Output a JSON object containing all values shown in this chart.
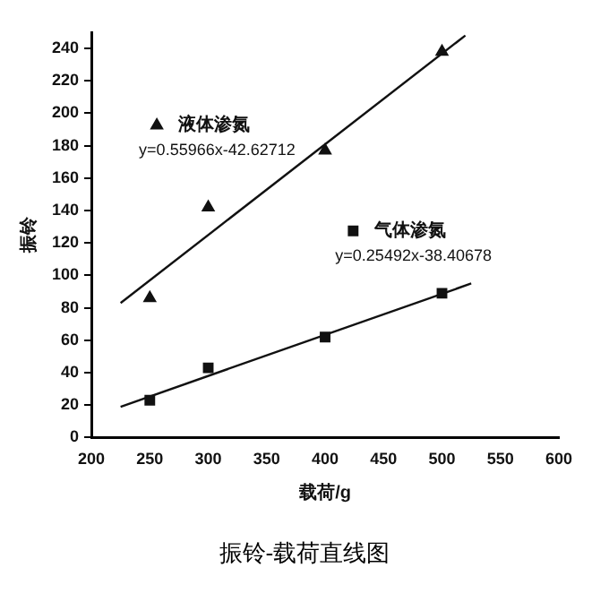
{
  "chart_data": {
    "type": "scatter",
    "title": "振铃-载荷直线图",
    "xlabel": "载荷/g",
    "ylabel": "振铃",
    "xlim": [
      200,
      600
    ],
    "xticks": [
      200,
      250,
      300,
      350,
      400,
      450,
      500,
      550,
      600
    ],
    "ylim": [
      0,
      250
    ],
    "yticks": [
      0,
      20,
      40,
      60,
      80,
      100,
      120,
      140,
      160,
      180,
      200,
      220,
      240
    ],
    "grid": false,
    "legend": "top left",
    "annotations": [
      "y=0.55966x-42.62712",
      "y=0.25492x-38.40678"
    ],
    "series": [
      {
        "name": "液体渗氮",
        "marker": "triangle",
        "color": "#111111",
        "x": [
          250,
          300,
          400,
          500
        ],
        "values": [
          86,
          142,
          177,
          238
        ]
      },
      {
        "name": "气体渗氮",
        "marker": "square",
        "color": "#111111",
        "x": [
          250,
          300,
          400,
          500
        ],
        "values": [
          23,
          43,
          62,
          89
        ]
      },
      {
        "type": "line",
        "color": "#111111",
        "marker": "none",
        "x": [
          225,
          520
        ],
        "values": [
          83,
          248
        ]
      },
      {
        "type": "line",
        "color": "#111111",
        "marker": "none",
        "x": [
          225,
          525
        ],
        "values": [
          19,
          95
        ]
      }
    ]
  }
}
